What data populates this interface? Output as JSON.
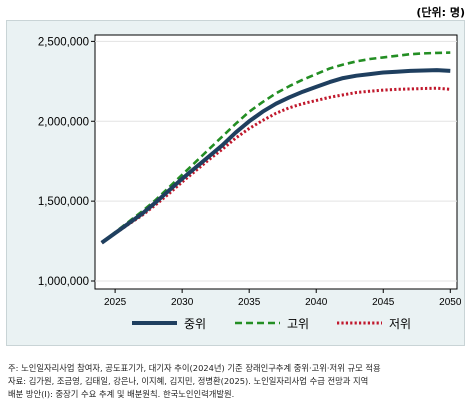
{
  "unit_label": "(단위: 명)",
  "chart_data": {
    "type": "line",
    "title": "",
    "xlabel": "",
    "ylabel": "",
    "x": [
      2024,
      2025,
      2026,
      2027,
      2028,
      2029,
      2030,
      2031,
      2032,
      2033,
      2034,
      2035,
      2036,
      2037,
      2038,
      2039,
      2040,
      2041,
      2042,
      2043,
      2044,
      2045,
      2046,
      2047,
      2048,
      2049,
      2050
    ],
    "xlim": [
      2023.5,
      2050.5
    ],
    "ylim": [
      950000,
      2540000
    ],
    "xticks": [
      2025,
      2030,
      2035,
      2040,
      2045,
      2050
    ],
    "xtick_labels": [
      "2025",
      "2030",
      "2035",
      "2040",
      "2045",
      "2050"
    ],
    "yticks": [
      1000000,
      1500000,
      2000000,
      2500000
    ],
    "ytick_labels": [
      "1,000,000",
      "1,500,000",
      "2,000,000",
      "2,500,000"
    ],
    "grid": true,
    "legend_position": "bottom",
    "series": [
      {
        "name": "중위",
        "color": "#1f3f5f",
        "style": "solid",
        "values": [
          1240000,
          1300000,
          1360000,
          1420000,
          1490000,
          1565000,
          1640000,
          1710000,
          1780000,
          1850000,
          1930000,
          2000000,
          2060000,
          2110000,
          2150000,
          2185000,
          2215000,
          2245000,
          2270000,
          2285000,
          2295000,
          2305000,
          2310000,
          2315000,
          2318000,
          2320000,
          2315000
        ]
      },
      {
        "name": "고위",
        "color": "#238e23",
        "style": "dashed",
        "values": [
          1240000,
          1305000,
          1370000,
          1435000,
          1505000,
          1585000,
          1665000,
          1745000,
          1825000,
          1905000,
          1985000,
          2060000,
          2120000,
          2175000,
          2220000,
          2260000,
          2295000,
          2330000,
          2355000,
          2375000,
          2390000,
          2400000,
          2410000,
          2420000,
          2425000,
          2428000,
          2430000
        ]
      },
      {
        "name": "저위",
        "color": "#c0182c",
        "style": "dotted",
        "values": [
          1240000,
          1298000,
          1355000,
          1410000,
          1475000,
          1545000,
          1620000,
          1690000,
          1760000,
          1825000,
          1895000,
          1955000,
          2005000,
          2050000,
          2085000,
          2110000,
          2130000,
          2150000,
          2165000,
          2180000,
          2188000,
          2195000,
          2200000,
          2202000,
          2205000,
          2207000,
          2200000
        ]
      }
    ]
  },
  "note": {
    "line1": "주: 노인일자리사업 참여자, 공도표기가, 대기자 추이(2024년) 기준 장래인구추계 중위·고위·저위 규모 적용",
    "line2": "자료: 김가원, 조금영, 김태일, 강은나, 이지혜, 김지민, 정병환(2025). 노인일자리사업 수급 전망과 지역",
    "line3": "배분 방안(I): 중장기 수요 추계 및 배분원칙. 한국노인인력개발원."
  }
}
